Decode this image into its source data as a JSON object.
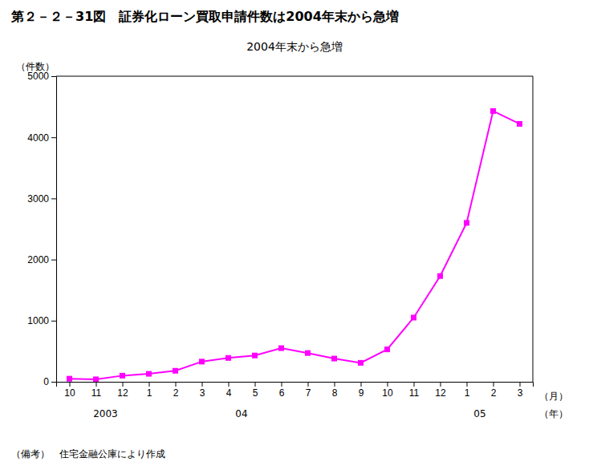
{
  "chart_data": {
    "type": "line",
    "title": "第２－２－31図　証券化ローン買取申請件数は2004年末から急増",
    "subtitle": "2004年末から急増",
    "y_label": "（件数）",
    "x_label": "（月）",
    "x_group_label": "（年）",
    "note": "（備考）　住宅金融公庫により作成",
    "categories": [
      "10",
      "11",
      "12",
      "1",
      "2",
      "3",
      "4",
      "5",
      "6",
      "7",
      "8",
      "9",
      "10",
      "11",
      "12",
      "1",
      "2",
      "3"
    ],
    "values": [
      50,
      40,
      100,
      130,
      180,
      330,
      390,
      430,
      550,
      470,
      380,
      310,
      530,
      1050,
      1730,
      2600,
      4430,
      4220
    ],
    "annotations": [
      {
        "text": "  2003",
        "x": 1.0
      },
      {
        "text": "04",
        "x": 6.5
      },
      {
        "text": "05",
        "x": 15.5
      }
    ],
    "color": "#FF00FF",
    "marker": "square",
    "ylim": [
      0,
      5000
    ],
    "yticks": [
      0,
      1000,
      2000,
      3000,
      4000,
      5000
    ],
    "grid": false
  }
}
